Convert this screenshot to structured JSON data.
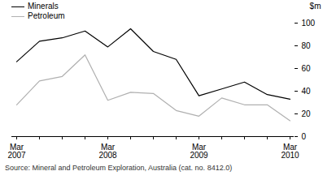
{
  "chart_data": {
    "type": "line",
    "categories": [
      "Mar 2007",
      null,
      null,
      null,
      "Mar 2008",
      null,
      null,
      null,
      "Mar 2009",
      null,
      null,
      null,
      "Mar 2010"
    ],
    "series": [
      {
        "name": "Minerals",
        "color": "#000000",
        "values": [
          66,
          84,
          87,
          93,
          79,
          95,
          75,
          68,
          36,
          42,
          48,
          37,
          33
        ]
      },
      {
        "name": "Petroleum",
        "color": "#b0b0b0",
        "values": [
          28,
          49,
          53,
          72,
          32,
          39,
          38,
          23,
          18,
          34,
          28,
          28,
          14
        ]
      }
    ],
    "ylabel": "$m",
    "ylim": [
      0,
      100
    ],
    "yticks": [
      0,
      20,
      40,
      60,
      80,
      100
    ],
    "grid": false,
    "legend": "top-left",
    "caption": "Source: Mineral and Petroleum Exploration, Australia (cat. no. 8412.0)"
  }
}
